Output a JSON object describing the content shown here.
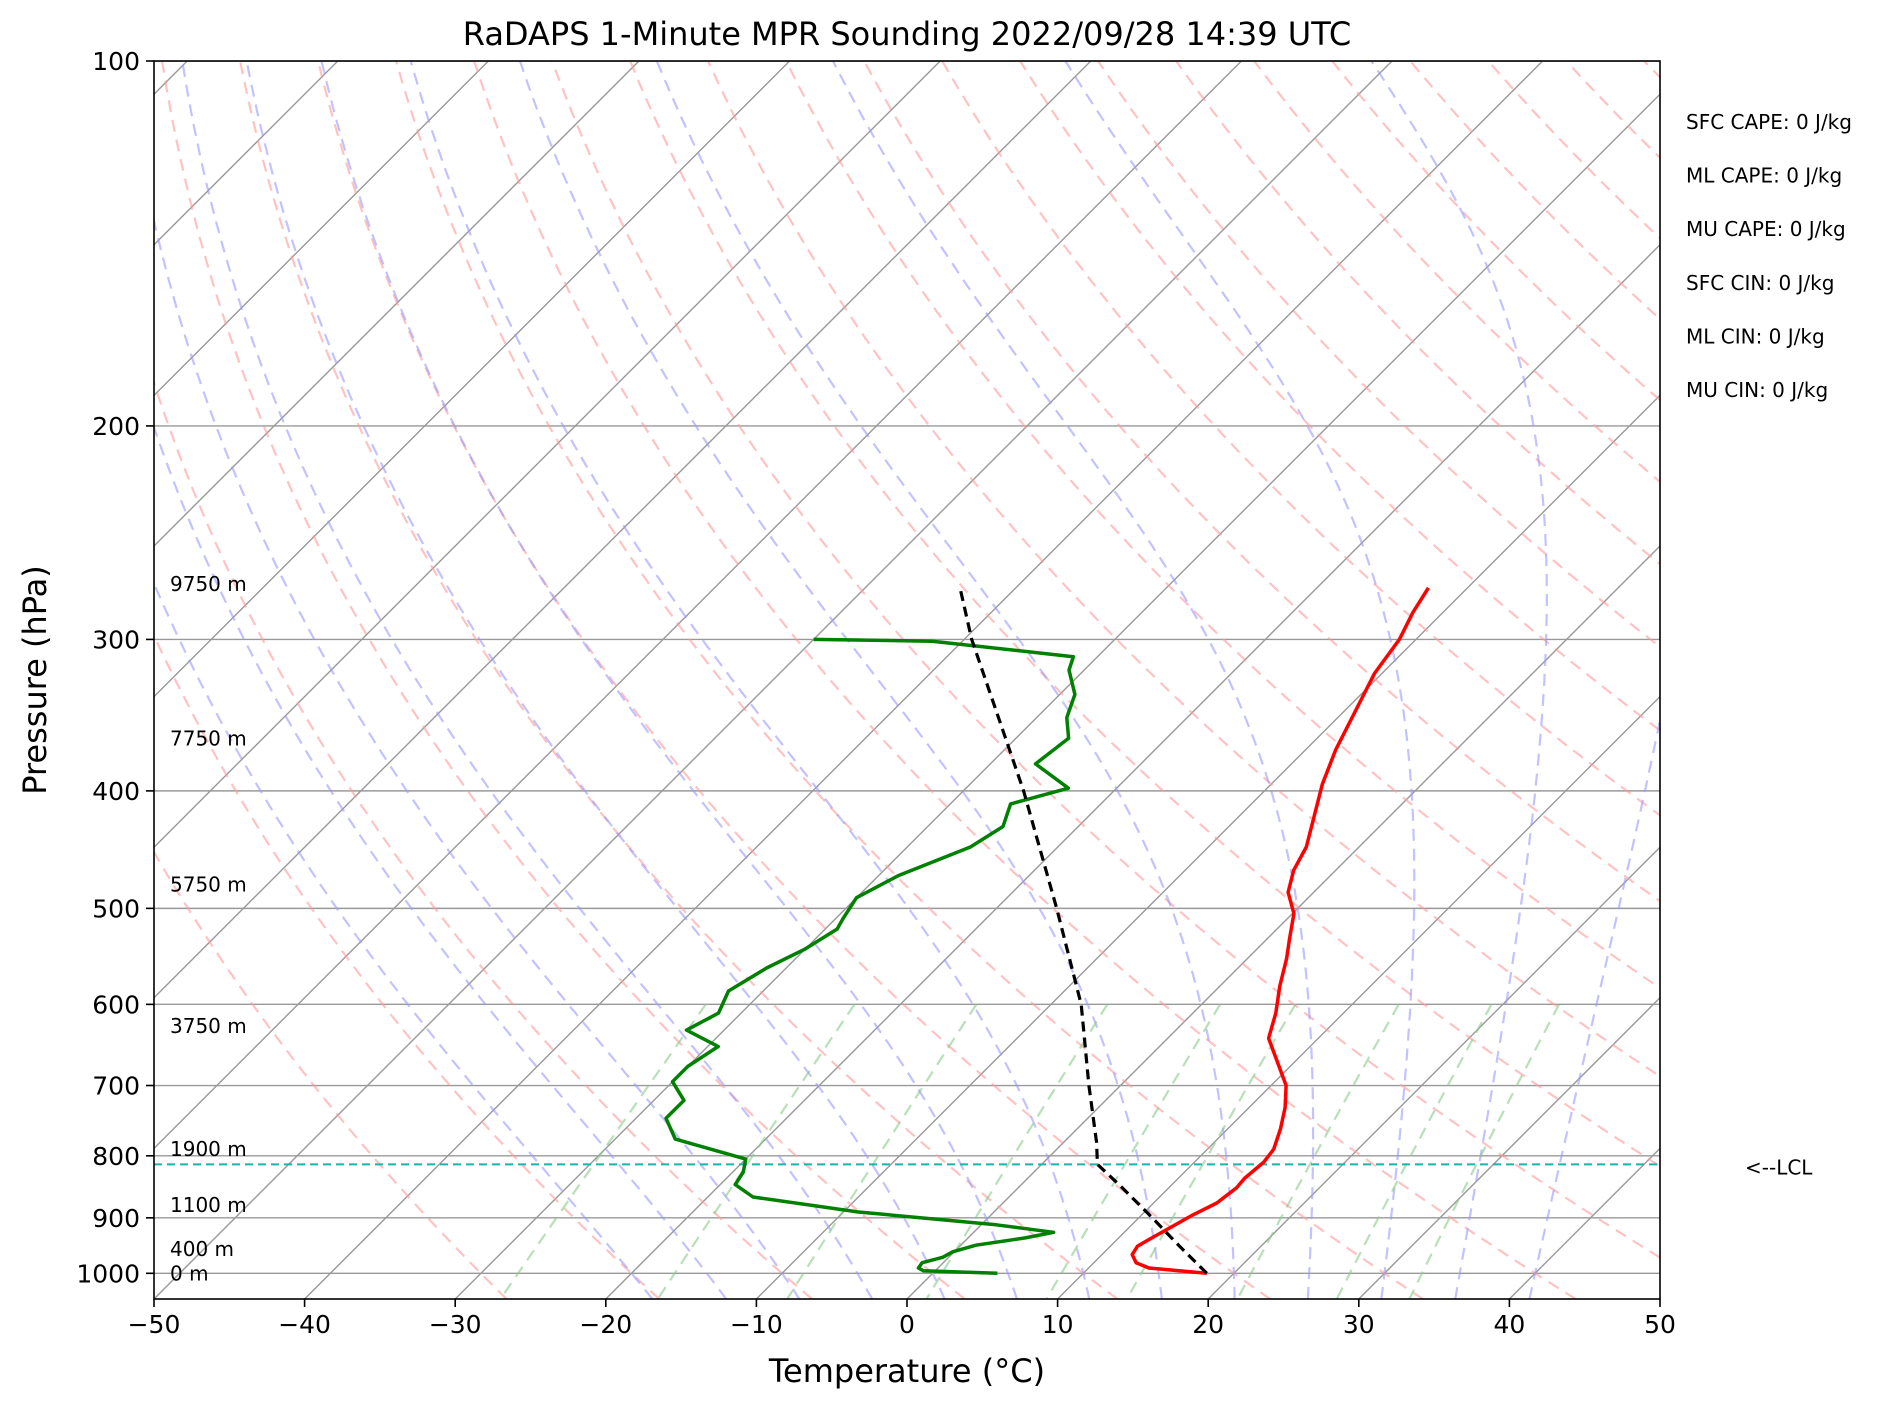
{
  "chart_data": {
    "type": "line",
    "title": "RaDAPS 1-Minute MPR Sounding 2022/09/28 14:39 UTC",
    "xlabel": "Temperature (°C)",
    "ylabel": "Pressure (hPa)",
    "xlim": [
      -50,
      50
    ],
    "ylim": [
      1050,
      100
    ],
    "y_scale": "log",
    "x_ticks": [
      -50,
      -40,
      -30,
      -20,
      -10,
      0,
      10,
      20,
      30,
      40,
      50
    ],
    "x_tick_labels": [
      "−50",
      "−40",
      "−30",
      "−20",
      "−10",
      "0",
      "10",
      "20",
      "30",
      "40",
      "50"
    ],
    "y_ticks": [
      100,
      200,
      300,
      400,
      500,
      600,
      700,
      800,
      900,
      1000
    ],
    "y_tick_labels": [
      "100",
      "200",
      "300",
      "400",
      "500",
      "600",
      "700",
      "800",
      "900",
      "1000"
    ],
    "grid": true,
    "skew_degrees": 45,
    "series": [
      {
        "name": "Temperature",
        "color": "#ff0000",
        "points": [
          [
            1000,
            18.2
          ],
          [
            990,
            14.0
          ],
          [
            980,
            12.8
          ],
          [
            965,
            12.0
          ],
          [
            950,
            11.8
          ],
          [
            935,
            12.2
          ],
          [
            915,
            12.8
          ],
          [
            895,
            13.4
          ],
          [
            875,
            14.2
          ],
          [
            850,
            14.5
          ],
          [
            835,
            14.4
          ],
          [
            810,
            14.6
          ],
          [
            790,
            14.4
          ],
          [
            760,
            13.5
          ],
          [
            730,
            12.4
          ],
          [
            700,
            11.0
          ],
          [
            670,
            8.9
          ],
          [
            640,
            6.7
          ],
          [
            610,
            5.5
          ],
          [
            580,
            4.0
          ],
          [
            550,
            2.6
          ],
          [
            530,
            1.5
          ],
          [
            505,
            0.1
          ],
          [
            485,
            -1.7
          ],
          [
            465,
            -2.8
          ],
          [
            445,
            -3.5
          ],
          [
            420,
            -5.0
          ],
          [
            395,
            -6.6
          ],
          [
            370,
            -8.0
          ],
          [
            345,
            -9.2
          ],
          [
            320,
            -10.5
          ],
          [
            300,
            -11.1
          ],
          [
            285,
            -12.0
          ],
          [
            272,
            -12.6
          ]
        ]
      },
      {
        "name": "Dewpoint",
        "color": "#008000",
        "points": [
          [
            1000,
            4.3
          ],
          [
            995,
            -0.8
          ],
          [
            990,
            -1.3
          ],
          [
            980,
            -1.4
          ],
          [
            970,
            -0.4
          ],
          [
            960,
            -0.1
          ],
          [
            948,
            1.0
          ],
          [
            935,
            3.8
          ],
          [
            925,
            5.3
          ],
          [
            912,
            1.0
          ],
          [
            890,
            -9.0
          ],
          [
            865,
            -17.0
          ],
          [
            845,
            -19.0
          ],
          [
            825,
            -19.3
          ],
          [
            805,
            -20.0
          ],
          [
            775,
            -26.0
          ],
          [
            745,
            -28.0
          ],
          [
            720,
            -28.0
          ],
          [
            695,
            -30.0
          ],
          [
            675,
            -30.0
          ],
          [
            650,
            -29.3
          ],
          [
            630,
            -32.5
          ],
          [
            610,
            -31.5
          ],
          [
            585,
            -32.3
          ],
          [
            560,
            -31.3
          ],
          [
            540,
            -30.0
          ],
          [
            520,
            -29.2
          ],
          [
            510,
            -29.5
          ],
          [
            490,
            -30.0
          ],
          [
            470,
            -28.7
          ],
          [
            445,
            -25.8
          ],
          [
            428,
            -25.0
          ],
          [
            410,
            -26.0
          ],
          [
            398,
            -23.2
          ],
          [
            380,
            -27.0
          ],
          [
            362,
            -26.5
          ],
          [
            348,
            -28.0
          ],
          [
            333,
            -29.0
          ],
          [
            318,
            -31.0
          ],
          [
            310,
            -31.6
          ],
          [
            301,
            -42.0
          ],
          [
            300,
            -50.0
          ]
        ]
      },
      {
        "name": "Parcel",
        "color": "#000000",
        "dashed": true,
        "points": [
          [
            1000,
            18.2
          ],
          [
            950,
            14.6
          ],
          [
            900,
            10.9
          ],
          [
            850,
            6.9
          ],
          [
            813,
            3.7
          ],
          [
            780,
            2.2
          ],
          [
            700,
            -2.1
          ],
          [
            600,
            -8.0
          ],
          [
            500,
            -16.0
          ],
          [
            400,
            -26.0
          ],
          [
            300,
            -39.5
          ],
          [
            272,
            -43.7
          ]
        ]
      }
    ],
    "lcl": {
      "pressure": 813,
      "label": "<--LCL",
      "color": "#20b2aa"
    },
    "dry_adiabat_color": "#ff9999",
    "moist_adiabat_color": "#9999ff",
    "mixing_ratio_color": "#88cc88",
    "isotherm_color": "#999999",
    "height_labels": [
      {
        "p": 270,
        "text": "9750 m"
      },
      {
        "p": 362,
        "text": "7750 m"
      },
      {
        "p": 478,
        "text": "5750 m"
      },
      {
        "p": 625,
        "text": "3750 m"
      },
      {
        "p": 790,
        "text": "1900 m"
      },
      {
        "p": 878,
        "text": "1100 m"
      },
      {
        "p": 955,
        "text": "400 m"
      },
      {
        "p": 1000,
        "text": "0 m"
      }
    ],
    "stats": [
      "SFC CAPE: 0 J/kg",
      "ML CAPE: 0 J/kg",
      "MU CAPE: 0 J/kg",
      "SFC CIN: 0 J/kg",
      "ML CIN: 0 J/kg",
      "MU CIN: 0 J/kg"
    ]
  }
}
